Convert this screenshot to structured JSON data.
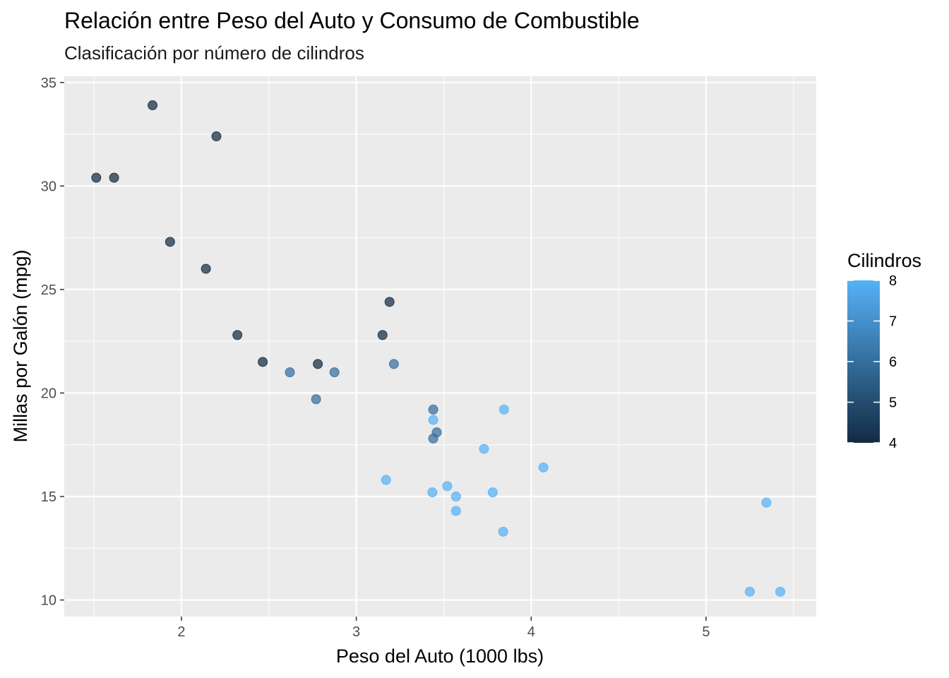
{
  "chart_data": {
    "type": "scatter",
    "title": "Relación entre Peso del Auto y Consumo de Combustible",
    "subtitle": "Clasificación por número de cilindros",
    "xlabel": "Peso del Auto (1000 lbs)",
    "ylabel": "Millas por Galón (mpg)",
    "xlim": [
      1.33,
      5.63
    ],
    "ylim": [
      9.2,
      35.3
    ],
    "x_ticks": [
      "2",
      "3",
      "4",
      "5"
    ],
    "y_ticks": [
      "10",
      "15",
      "20",
      "25",
      "30",
      "35"
    ],
    "grid": true,
    "legend": {
      "title": "Cilindros",
      "position": "right",
      "type": "colorbar",
      "labels": [
        "4",
        "5",
        "6",
        "7",
        "8"
      ],
      "low_color": "#132B43",
      "high_color": "#56B1F7"
    },
    "points": [
      {
        "x": 1.513,
        "y": 30.4,
        "cyl": 4
      },
      {
        "x": 1.615,
        "y": 30.4,
        "cyl": 4
      },
      {
        "x": 1.835,
        "y": 33.9,
        "cyl": 4
      },
      {
        "x": 1.935,
        "y": 27.3,
        "cyl": 4
      },
      {
        "x": 2.14,
        "y": 26.0,
        "cyl": 4
      },
      {
        "x": 2.2,
        "y": 32.4,
        "cyl": 4
      },
      {
        "x": 2.32,
        "y": 22.8,
        "cyl": 4
      },
      {
        "x": 2.465,
        "y": 21.5,
        "cyl": 4
      },
      {
        "x": 2.62,
        "y": 21.0,
        "cyl": 6
      },
      {
        "x": 2.77,
        "y": 19.7,
        "cyl": 6
      },
      {
        "x": 2.78,
        "y": 21.4,
        "cyl": 4
      },
      {
        "x": 2.875,
        "y": 21.0,
        "cyl": 6
      },
      {
        "x": 3.15,
        "y": 22.8,
        "cyl": 4
      },
      {
        "x": 3.17,
        "y": 15.8,
        "cyl": 8
      },
      {
        "x": 3.19,
        "y": 24.4,
        "cyl": 4
      },
      {
        "x": 3.215,
        "y": 21.4,
        "cyl": 6
      },
      {
        "x": 3.435,
        "y": 15.2,
        "cyl": 8
      },
      {
        "x": 3.44,
        "y": 18.7,
        "cyl": 8
      },
      {
        "x": 3.44,
        "y": 19.2,
        "cyl": 6
      },
      {
        "x": 3.44,
        "y": 17.8,
        "cyl": 6
      },
      {
        "x": 3.46,
        "y": 18.1,
        "cyl": 6
      },
      {
        "x": 3.52,
        "y": 15.5,
        "cyl": 8
      },
      {
        "x": 3.57,
        "y": 14.3,
        "cyl": 8
      },
      {
        "x": 3.57,
        "y": 15.0,
        "cyl": 8
      },
      {
        "x": 3.73,
        "y": 17.3,
        "cyl": 8
      },
      {
        "x": 3.78,
        "y": 15.2,
        "cyl": 8
      },
      {
        "x": 3.84,
        "y": 13.3,
        "cyl": 8
      },
      {
        "x": 3.845,
        "y": 19.2,
        "cyl": 8
      },
      {
        "x": 4.07,
        "y": 16.4,
        "cyl": 8
      },
      {
        "x": 5.25,
        "y": 10.4,
        "cyl": 8
      },
      {
        "x": 5.345,
        "y": 14.7,
        "cyl": 8
      },
      {
        "x": 5.424,
        "y": 10.4,
        "cyl": 8
      }
    ]
  }
}
